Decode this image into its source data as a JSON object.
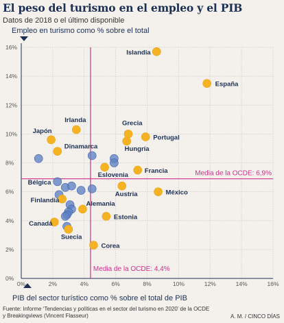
{
  "header": {
    "title": "El peso del turismo en el empleo y el PIB",
    "subtitle": "Datos de 2018 o el último disponible"
  },
  "footer": {
    "source_line1": "Fuente: Informe ‘Tendencias y políticas en el sector del turismo en 2020’ de la OCDE",
    "source_line2": "y Breakingviews (Vincent Flasseur)",
    "credit": "A. M. / CINCO DÍAS"
  },
  "colors": {
    "highlight": "#f5b324",
    "other": "#5f81c4",
    "mean_line": "#d0308a",
    "text": "#1b2f55"
  },
  "chart_data": {
    "type": "scatter",
    "xlabel": "PIB del sector turístico como % sobre el total de PIB",
    "ylabel": "Empleo en turismo como % sobre el total",
    "xlim": [
      0,
      16
    ],
    "ylim": [
      0,
      16
    ],
    "x_ticks": [
      "0%",
      "2%",
      "4%",
      "6%",
      "8%",
      "10%",
      "12%",
      "14%",
      "16%"
    ],
    "y_ticks": [
      "0%",
      "2%",
      "4%",
      "6%",
      "8%",
      "10%",
      "12%",
      "14%",
      "16%"
    ],
    "grid": true,
    "mean_lines": [
      {
        "axis": "y",
        "value": 6.9,
        "label": "Media de la OCDE: 6,9%"
      },
      {
        "axis": "x",
        "value": 4.4,
        "label": "Media de la OCDE: 4,4%"
      }
    ],
    "labeled_points": [
      {
        "name": "Islandia",
        "x": 8.6,
        "y": 15.7
      },
      {
        "name": "España",
        "x": 11.8,
        "y": 13.5
      },
      {
        "name": "Irlanda",
        "x": 3.5,
        "y": 10.3
      },
      {
        "name": "Japón",
        "x": 1.9,
        "y": 9.6
      },
      {
        "name": "Dinamarca",
        "x": 2.3,
        "y": 8.8
      },
      {
        "name": "Grecia",
        "x": 6.8,
        "y": 10.0
      },
      {
        "name": "Hungría",
        "x": 6.7,
        "y": 9.5
      },
      {
        "name": "Portugal",
        "x": 7.9,
        "y": 9.8
      },
      {
        "name": "Eslovenia",
        "x": 5.3,
        "y": 7.7
      },
      {
        "name": "Francia",
        "x": 7.4,
        "y": 7.5
      },
      {
        "name": "México",
        "x": 8.7,
        "y": 6.0
      },
      {
        "name": "Austria",
        "x": 6.4,
        "y": 6.4
      },
      {
        "name": "Finlandia",
        "x": 2.6,
        "y": 5.5
      },
      {
        "name": "Alemania",
        "x": 3.9,
        "y": 4.8
      },
      {
        "name": "Estonia",
        "x": 5.4,
        "y": 4.3
      },
      {
        "name": "Canadá",
        "x": 2.1,
        "y": 3.9
      },
      {
        "name": "Suecia",
        "x": 3.0,
        "y": 3.4
      },
      {
        "name": "Corea",
        "x": 4.6,
        "y": 2.3
      }
    ],
    "other_points": [
      {
        "x": 1.1,
        "y": 8.3
      },
      {
        "x": 4.5,
        "y": 8.5
      },
      {
        "x": 5.9,
        "y": 8.3
      },
      {
        "x": 5.9,
        "y": 8.0
      },
      {
        "x": 2.3,
        "y": 6.7
      },
      {
        "x": 2.8,
        "y": 6.3
      },
      {
        "x": 3.2,
        "y": 6.4
      },
      {
        "x": 3.8,
        "y": 6.1
      },
      {
        "x": 4.5,
        "y": 6.2
      },
      {
        "x": 2.4,
        "y": 5.8
      },
      {
        "x": 3.1,
        "y": 5.1
      },
      {
        "x": 3.2,
        "y": 4.8
      },
      {
        "x": 3.0,
        "y": 4.6
      },
      {
        "x": 2.9,
        "y": 4.4
      },
      {
        "x": 2.8,
        "y": 4.3
      },
      {
        "x": 2.9,
        "y": 3.6
      }
    ],
    "highlight_label": "Bélgica",
    "highlight_label_x": 1.9,
    "highlight_label_y": 6.6
  }
}
